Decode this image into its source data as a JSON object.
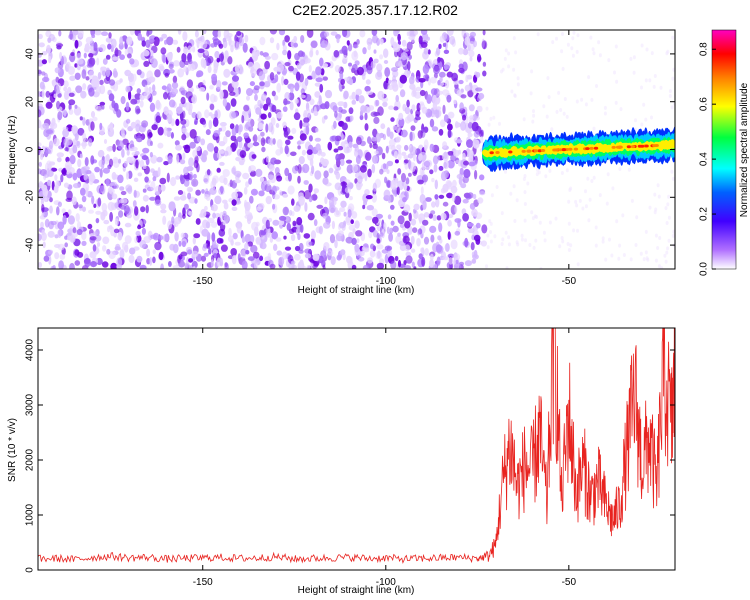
{
  "figure": {
    "title": "C2E2.2025.357.17.12.R02"
  },
  "chart_data": [
    {
      "type": "heatmap",
      "xlabel": "Height of straight line (km)",
      "ylabel": "Frequency (Hz)",
      "xlim": [
        -195,
        -21
      ],
      "ylim": [
        -50,
        50
      ],
      "xticks": [
        -150,
        -100,
        -50
      ],
      "yticks": [
        -40,
        -20,
        0,
        20,
        40
      ],
      "grid": false,
      "colorbar": {
        "label": "Normalized spectral amplitude",
        "range": [
          0,
          0.87
        ],
        "ticks": [
          0.0,
          0.2,
          0.4,
          0.6,
          0.8
        ],
        "colormap": [
          "#ff00ff",
          "#ff0000",
          "#ff8800",
          "#ffff00",
          "#00ff00",
          "#00ffff",
          "#0000ff",
          "#8a2be2",
          "#ffffff"
        ]
      },
      "regions": [
        {
          "name": "noise",
          "x_range": [
            -195,
            -73
          ],
          "freq_range": [
            -50,
            50
          ],
          "amplitude_range": [
            0.0,
            0.15
          ]
        },
        {
          "name": "signal",
          "x_range": [
            -73,
            -21
          ],
          "center_freq_start": -1.5,
          "center_freq_end": 2.0,
          "band_width_hz": 6,
          "amplitude_range": [
            0.2,
            0.87
          ]
        }
      ]
    },
    {
      "type": "line",
      "xlabel": "Height of straight line (km)",
      "ylabel": "SNR (10 * v/v)",
      "xlim": [
        -195,
        -21
      ],
      "ylim": [
        0,
        4400
      ],
      "xticks": [
        -150,
        -100,
        -50
      ],
      "yticks": [
        0,
        1000,
        2000,
        3000,
        4000
      ],
      "grid": false,
      "series_color": "#e8231f",
      "x": [
        -195,
        -190,
        -185,
        -180,
        -175,
        -170,
        -165,
        -160,
        -155,
        -150,
        -145,
        -140,
        -135,
        -130,
        -125,
        -120,
        -115,
        -110,
        -105,
        -100,
        -95,
        -90,
        -85,
        -80,
        -75,
        -72,
        -70,
        -68,
        -66,
        -64,
        -62,
        -60,
        -58,
        -56,
        -54,
        -52,
        -50,
        -48,
        -46,
        -44,
        -42,
        -40,
        -38,
        -36,
        -34,
        -32,
        -30,
        -28,
        -26,
        -24,
        -22,
        -21
      ],
      "y": [
        200,
        210,
        190,
        230,
        250,
        220,
        230,
        200,
        210,
        220,
        230,
        210,
        220,
        240,
        200,
        210,
        220,
        230,
        210,
        220,
        200,
        210,
        220,
        230,
        210,
        250,
        450,
        1600,
        2300,
        1500,
        1900,
        1800,
        2500,
        1200,
        4400,
        1300,
        2900,
        1400,
        1900,
        1300,
        1600,
        1200,
        900,
        1200,
        2200,
        3200,
        1900,
        2400,
        1500,
        3700,
        2600,
        3500
      ]
    }
  ]
}
